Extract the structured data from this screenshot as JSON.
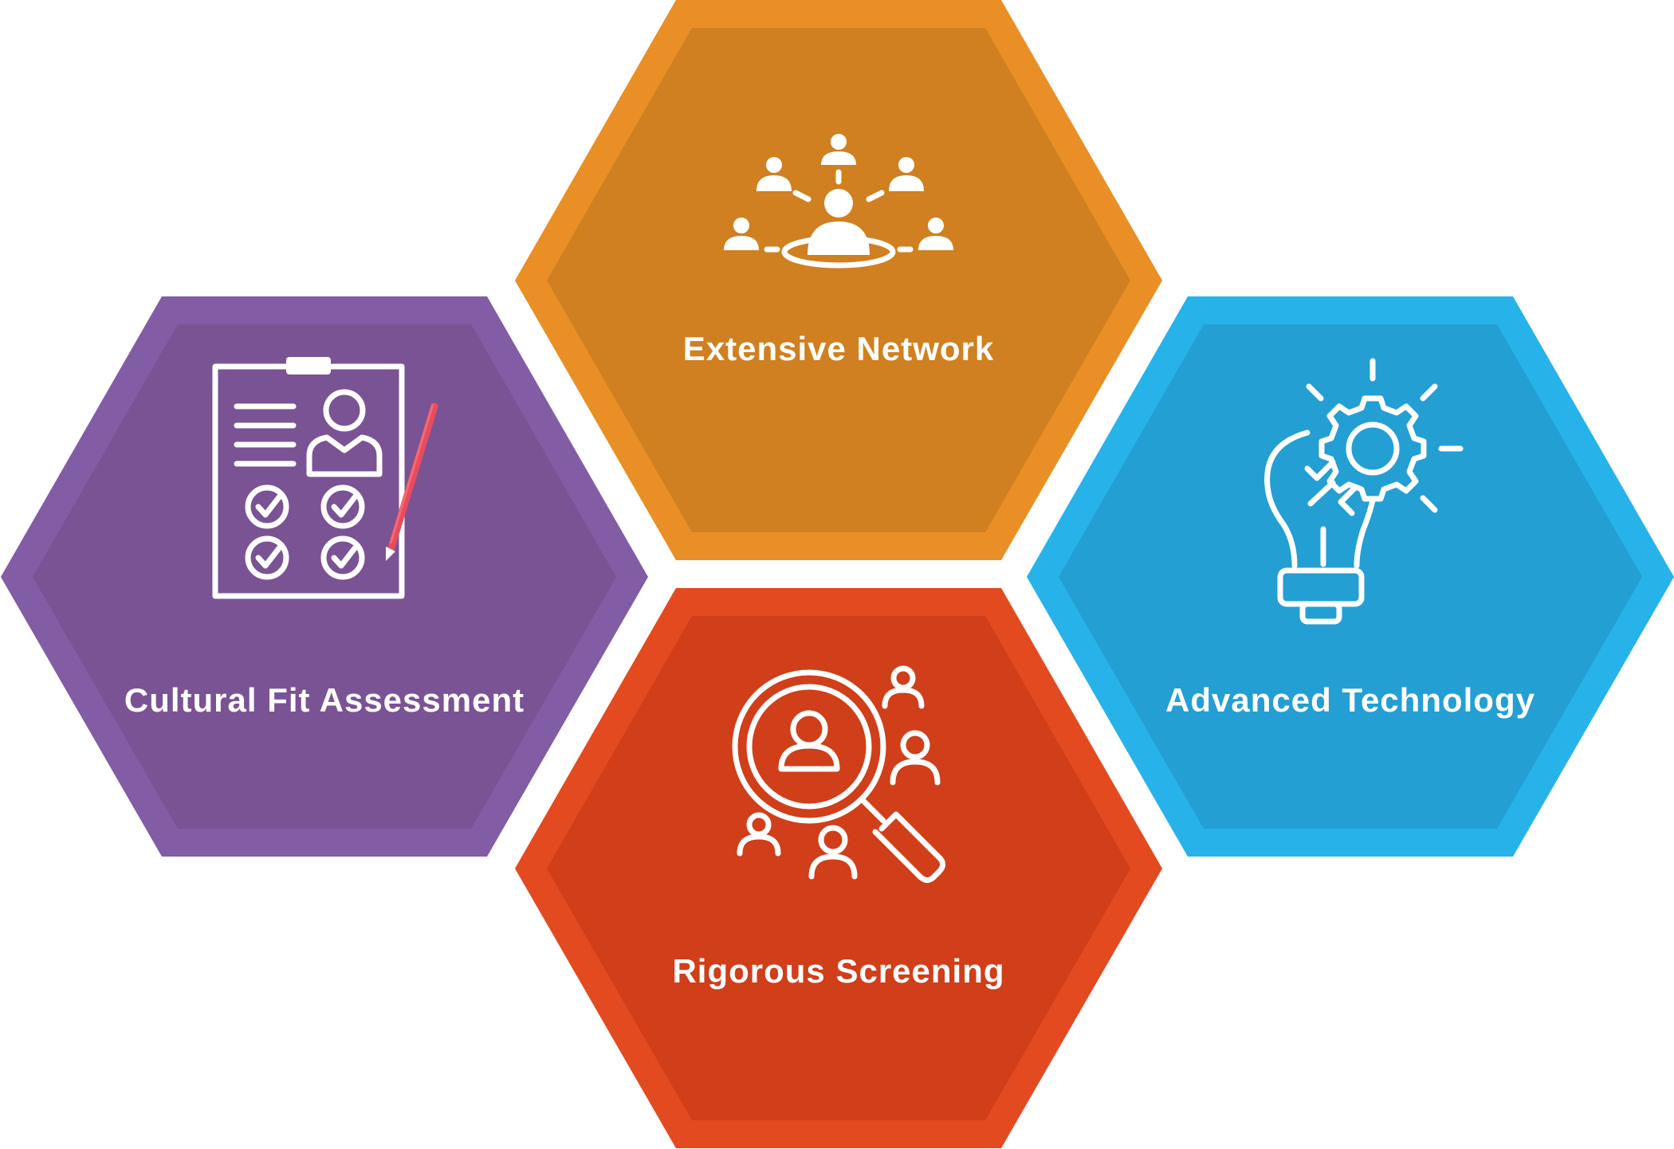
{
  "hexagons": [
    {
      "id": "network",
      "label": "Extensive Network",
      "outer": "#E98F25",
      "inner": "#D08020",
      "icon": "network-people-icon"
    },
    {
      "id": "culture",
      "label": "Cultural Fit Assessment",
      "outer": "#825CA4",
      "inner": "#7A5394",
      "icon": "clipboard-checklist-icon"
    },
    {
      "id": "tech",
      "label": "Advanced Technology",
      "outer": "#27B3E9",
      "inner": "#239FD4",
      "icon": "lightbulb-gear-icon"
    },
    {
      "id": "screening",
      "label": "Rigorous Screening",
      "outer": "#E34A20",
      "inner": "#D03E1A",
      "icon": "magnifier-people-icon"
    }
  ],
  "accent": "#E84C5A"
}
